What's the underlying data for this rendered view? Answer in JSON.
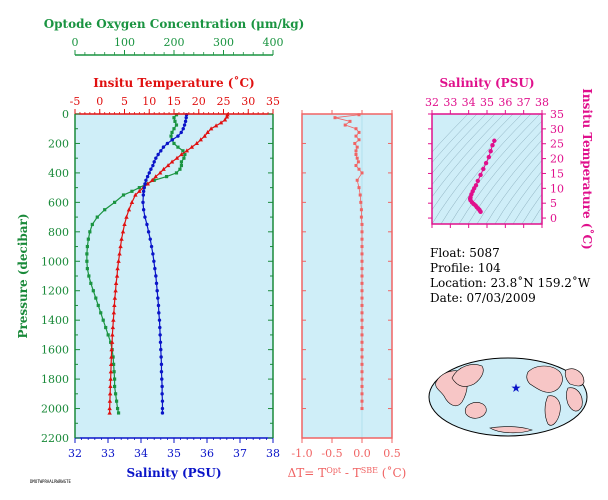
{
  "info": {
    "float": "Float:  5087",
    "profile": "Profile:  104",
    "location": "Location:  23.8˚N  159.2˚W",
    "date": "Date:  07/03/2009"
  },
  "footer_code": "DMOTWPRAALRWRWGTE",
  "colors": {
    "oxygen": "#1a9441",
    "temperature": "#e01010",
    "salinity": "#0a14c8",
    "delta": "#f06464",
    "ts": "#e0108c",
    "panel_bg": "#cfeef8",
    "pressure_axis": "#1a8a3a"
  },
  "chart_data": [
    {
      "type": "line",
      "title": "",
      "ylabel": "Pressure (decibar)",
      "y": {
        "min": 0,
        "max": 2200,
        "inverted": true,
        "ticks": [
          0,
          200,
          400,
          600,
          800,
          1000,
          1200,
          1400,
          1600,
          1800,
          2000,
          2200
        ]
      },
      "axes": [
        {
          "label": "Optode Oxygen Concentration (μm/kg)",
          "min": 0,
          "max": 400,
          "ticks": [
            0,
            100,
            200,
            300,
            400
          ]
        },
        {
          "label": "Insitu Temperature (˚C)",
          "min": -5,
          "max": 35,
          "ticks": [
            -5,
            0,
            5,
            10,
            15,
            20,
            25,
            30,
            35
          ]
        },
        {
          "label": "Salinity (PSU)",
          "min": 32,
          "max": 38,
          "ticks": [
            32,
            33,
            34,
            35,
            36,
            37,
            38
          ]
        }
      ],
      "series": [
        {
          "variable": "oxygen",
          "points": [
            [
              205,
              5
            ],
            [
              200,
              25
            ],
            [
              202,
              50
            ],
            [
              205,
              75
            ],
            [
              200,
              100
            ],
            [
              196,
              125
            ],
            [
              194,
              150
            ],
            [
              196,
              175
            ],
            [
              200,
              200
            ],
            [
              208,
              225
            ],
            [
              218,
              250
            ],
            [
              222,
              275
            ],
            [
              220,
              300
            ],
            [
              215,
              325
            ],
            [
              215,
              350
            ],
            [
              212,
              375
            ],
            [
              205,
              400
            ],
            [
              185,
              425
            ],
            [
              160,
              450
            ],
            [
              145,
              475
            ],
            [
              130,
              500
            ],
            [
              115,
              525
            ],
            [
              98,
              550
            ],
            [
              80,
              600
            ],
            [
              60,
              650
            ],
            [
              45,
              700
            ],
            [
              35,
              750
            ],
            [
              30,
              800
            ],
            [
              27,
              850
            ],
            [
              25,
              900
            ],
            [
              24,
              950
            ],
            [
              24,
              1000
            ],
            [
              25,
              1050
            ],
            [
              28,
              1100
            ],
            [
              32,
              1150
            ],
            [
              37,
              1200
            ],
            [
              42,
              1250
            ],
            [
              47,
              1300
            ],
            [
              52,
              1350
            ],
            [
              57,
              1400
            ],
            [
              62,
              1450
            ],
            [
              67,
              1500
            ],
            [
              72,
              1550
            ],
            [
              75,
              1600
            ],
            [
              77,
              1650
            ],
            [
              78,
              1700
            ],
            [
              79,
              1750
            ],
            [
              80,
              1800
            ],
            [
              80,
              1850
            ],
            [
              82,
              1900
            ],
            [
              84,
              1950
            ],
            [
              86,
              2000
            ],
            [
              88,
              2030
            ]
          ]
        },
        {
          "variable": "temperature",
          "points": [
            [
              25.8,
              5
            ],
            [
              25.7,
              20
            ],
            [
              25.3,
              40
            ],
            [
              24.5,
              60
            ],
            [
              23.5,
              80
            ],
            [
              22.5,
              100
            ],
            [
              21.8,
              125
            ],
            [
              21.2,
              150
            ],
            [
              20.4,
              175
            ],
            [
              19.6,
              200
            ],
            [
              18.6,
              225
            ],
            [
              17.6,
              250
            ],
            [
              16.5,
              275
            ],
            [
              15.6,
              300
            ],
            [
              14.6,
              325
            ],
            [
              13.8,
              350
            ],
            [
              12.9,
              375
            ],
            [
              12.2,
              400
            ],
            [
              11.3,
              425
            ],
            [
              10.6,
              450
            ],
            [
              9.7,
              475
            ],
            [
              8.8,
              500
            ],
            [
              8.0,
              525
            ],
            [
              7.2,
              550
            ],
            [
              6.5,
              600
            ],
            [
              5.9,
              650
            ],
            [
              5.4,
              700
            ],
            [
              5.0,
              750
            ],
            [
              4.7,
              800
            ],
            [
              4.4,
              850
            ],
            [
              4.2,
              900
            ],
            [
              4.0,
              950
            ],
            [
              3.8,
              1000
            ],
            [
              3.6,
              1050
            ],
            [
              3.5,
              1100
            ],
            [
              3.3,
              1150
            ],
            [
              3.2,
              1200
            ],
            [
              3.05,
              1250
            ],
            [
              2.95,
              1300
            ],
            [
              2.85,
              1350
            ],
            [
              2.75,
              1400
            ],
            [
              2.65,
              1450
            ],
            [
              2.55,
              1500
            ],
            [
              2.5,
              1550
            ],
            [
              2.4,
              1600
            ],
            [
              2.35,
              1650
            ],
            [
              2.3,
              1700
            ],
            [
              2.25,
              1750
            ],
            [
              2.2,
              1800
            ],
            [
              2.15,
              1850
            ],
            [
              2.1,
              1900
            ],
            [
              2.05,
              1950
            ],
            [
              2.0,
              2000
            ],
            [
              2.0,
              2030
            ]
          ]
        },
        {
          "variable": "salinity",
          "points": [
            [
              35.38,
              5
            ],
            [
              35.37,
              25
            ],
            [
              35.35,
              50
            ],
            [
              35.32,
              75
            ],
            [
              35.28,
              100
            ],
            [
              35.22,
              125
            ],
            [
              35.12,
              150
            ],
            [
              34.95,
              175
            ],
            [
              34.8,
              200
            ],
            [
              34.68,
              225
            ],
            [
              34.6,
              250
            ],
            [
              34.52,
              275
            ],
            [
              34.45,
              300
            ],
            [
              34.4,
              325
            ],
            [
              34.36,
              350
            ],
            [
              34.3,
              375
            ],
            [
              34.25,
              400
            ],
            [
              34.2,
              425
            ],
            [
              34.15,
              450
            ],
            [
              34.12,
              475
            ],
            [
              34.1,
              500
            ],
            [
              34.08,
              525
            ],
            [
              34.07,
              550
            ],
            [
              34.06,
              600
            ],
            [
              34.08,
              650
            ],
            [
              34.12,
              700
            ],
            [
              34.18,
              750
            ],
            [
              34.23,
              800
            ],
            [
              34.28,
              850
            ],
            [
              34.32,
              900
            ],
            [
              34.36,
              950
            ],
            [
              34.39,
              1000
            ],
            [
              34.42,
              1050
            ],
            [
              34.45,
              1100
            ],
            [
              34.47,
              1150
            ],
            [
              34.49,
              1200
            ],
            [
              34.51,
              1250
            ],
            [
              34.53,
              1300
            ],
            [
              34.54,
              1350
            ],
            [
              34.56,
              1400
            ],
            [
              34.57,
              1450
            ],
            [
              34.58,
              1500
            ],
            [
              34.59,
              1550
            ],
            [
              34.6,
              1600
            ],
            [
              34.61,
              1650
            ],
            [
              34.62,
              1700
            ],
            [
              34.62,
              1750
            ],
            [
              34.63,
              1800
            ],
            [
              34.64,
              1850
            ],
            [
              34.64,
              1900
            ],
            [
              34.65,
              1950
            ],
            [
              34.65,
              2000
            ],
            [
              34.65,
              2030
            ]
          ]
        }
      ]
    },
    {
      "type": "line",
      "title": "",
      "xlabel": "ΔT= T^Opt - T^SBE (˚C)",
      "x": {
        "min": -1.0,
        "max": 0.5,
        "ticks": [
          -1.0,
          -0.5,
          0.0,
          0.5
        ],
        "tick_labels": [
          "-1.0",
          "-0.5",
          "0.0",
          "0.5"
        ]
      },
      "y": {
        "min": 0,
        "max": 2200,
        "inverted": true
      },
      "series": [
        {
          "variable": "delta",
          "points": [
            [
              -0.05,
              5
            ],
            [
              -0.45,
              25
            ],
            [
              -0.2,
              50
            ],
            [
              -0.28,
              75
            ],
            [
              -0.1,
              100
            ],
            [
              -0.05,
              125
            ],
            [
              -0.1,
              150
            ],
            [
              -0.05,
              175
            ],
            [
              -0.12,
              200
            ],
            [
              -0.08,
              225
            ],
            [
              -0.1,
              250
            ],
            [
              -0.1,
              275
            ],
            [
              -0.08,
              300
            ],
            [
              -0.06,
              325
            ],
            [
              -0.1,
              350
            ],
            [
              -0.05,
              375
            ],
            [
              0.0,
              400
            ],
            [
              -0.08,
              450
            ],
            [
              -0.05,
              500
            ],
            [
              -0.03,
              550
            ],
            [
              -0.02,
              600
            ],
            [
              -0.01,
              650
            ],
            [
              -0.01,
              700
            ],
            [
              0.0,
              750
            ],
            [
              0.0,
              800
            ],
            [
              0.0,
              850
            ],
            [
              0.0,
              900
            ],
            [
              0.0,
              950
            ],
            [
              0.0,
              1000
            ],
            [
              0.0,
              1050
            ],
            [
              0.0,
              1100
            ],
            [
              0.0,
              1150
            ],
            [
              0.0,
              1200
            ],
            [
              0.0,
              1250
            ],
            [
              0.0,
              1300
            ],
            [
              0.0,
              1350
            ],
            [
              0.0,
              1400
            ],
            [
              0.0,
              1450
            ],
            [
              0.0,
              1500
            ],
            [
              0.0,
              1550
            ],
            [
              0.0,
              1600
            ],
            [
              0.0,
              1650
            ],
            [
              0.0,
              1700
            ],
            [
              0.0,
              1750
            ],
            [
              0.0,
              1800
            ],
            [
              0.0,
              1850
            ],
            [
              0.0,
              1900
            ],
            [
              0.0,
              1950
            ],
            [
              0.0,
              2000
            ]
          ]
        }
      ]
    },
    {
      "type": "scatter",
      "title": "",
      "xlabel": "Salinity (PSU)",
      "ylabel": "Insitu Temperature (˚C)",
      "x": {
        "min": 32,
        "max": 38,
        "ticks": [
          32,
          33,
          34,
          35,
          36,
          37,
          38
        ]
      },
      "y": {
        "min": -2,
        "max": 35,
        "ticks": [
          0,
          5,
          10,
          15,
          20,
          25,
          30,
          35
        ]
      },
      "series": [
        {
          "variable": "ts",
          "points": [
            [
              35.4,
              26.0
            ],
            [
              35.3,
              24.5
            ],
            [
              35.2,
              22.5
            ],
            [
              35.1,
              20.5
            ],
            [
              34.95,
              18.5
            ],
            [
              34.8,
              16.5
            ],
            [
              34.65,
              14.5
            ],
            [
              34.5,
              12.5
            ],
            [
              34.4,
              11.0
            ],
            [
              34.3,
              10.0
            ],
            [
              34.22,
              9.0
            ],
            [
              34.15,
              8.0
            ],
            [
              34.1,
              7.0
            ],
            [
              34.08,
              6.5
            ],
            [
              34.1,
              6.0
            ],
            [
              34.18,
              5.3
            ],
            [
              34.28,
              4.7
            ],
            [
              34.38,
              4.2
            ],
            [
              34.45,
              3.6
            ],
            [
              34.52,
              3.2
            ],
            [
              34.58,
              2.8
            ],
            [
              34.62,
              2.4
            ],
            [
              34.65,
              2.1
            ]
          ]
        }
      ]
    },
    {
      "type": "map",
      "title": "",
      "marker": {
        "lat": 23.8,
        "lon": -159.2
      }
    }
  ]
}
